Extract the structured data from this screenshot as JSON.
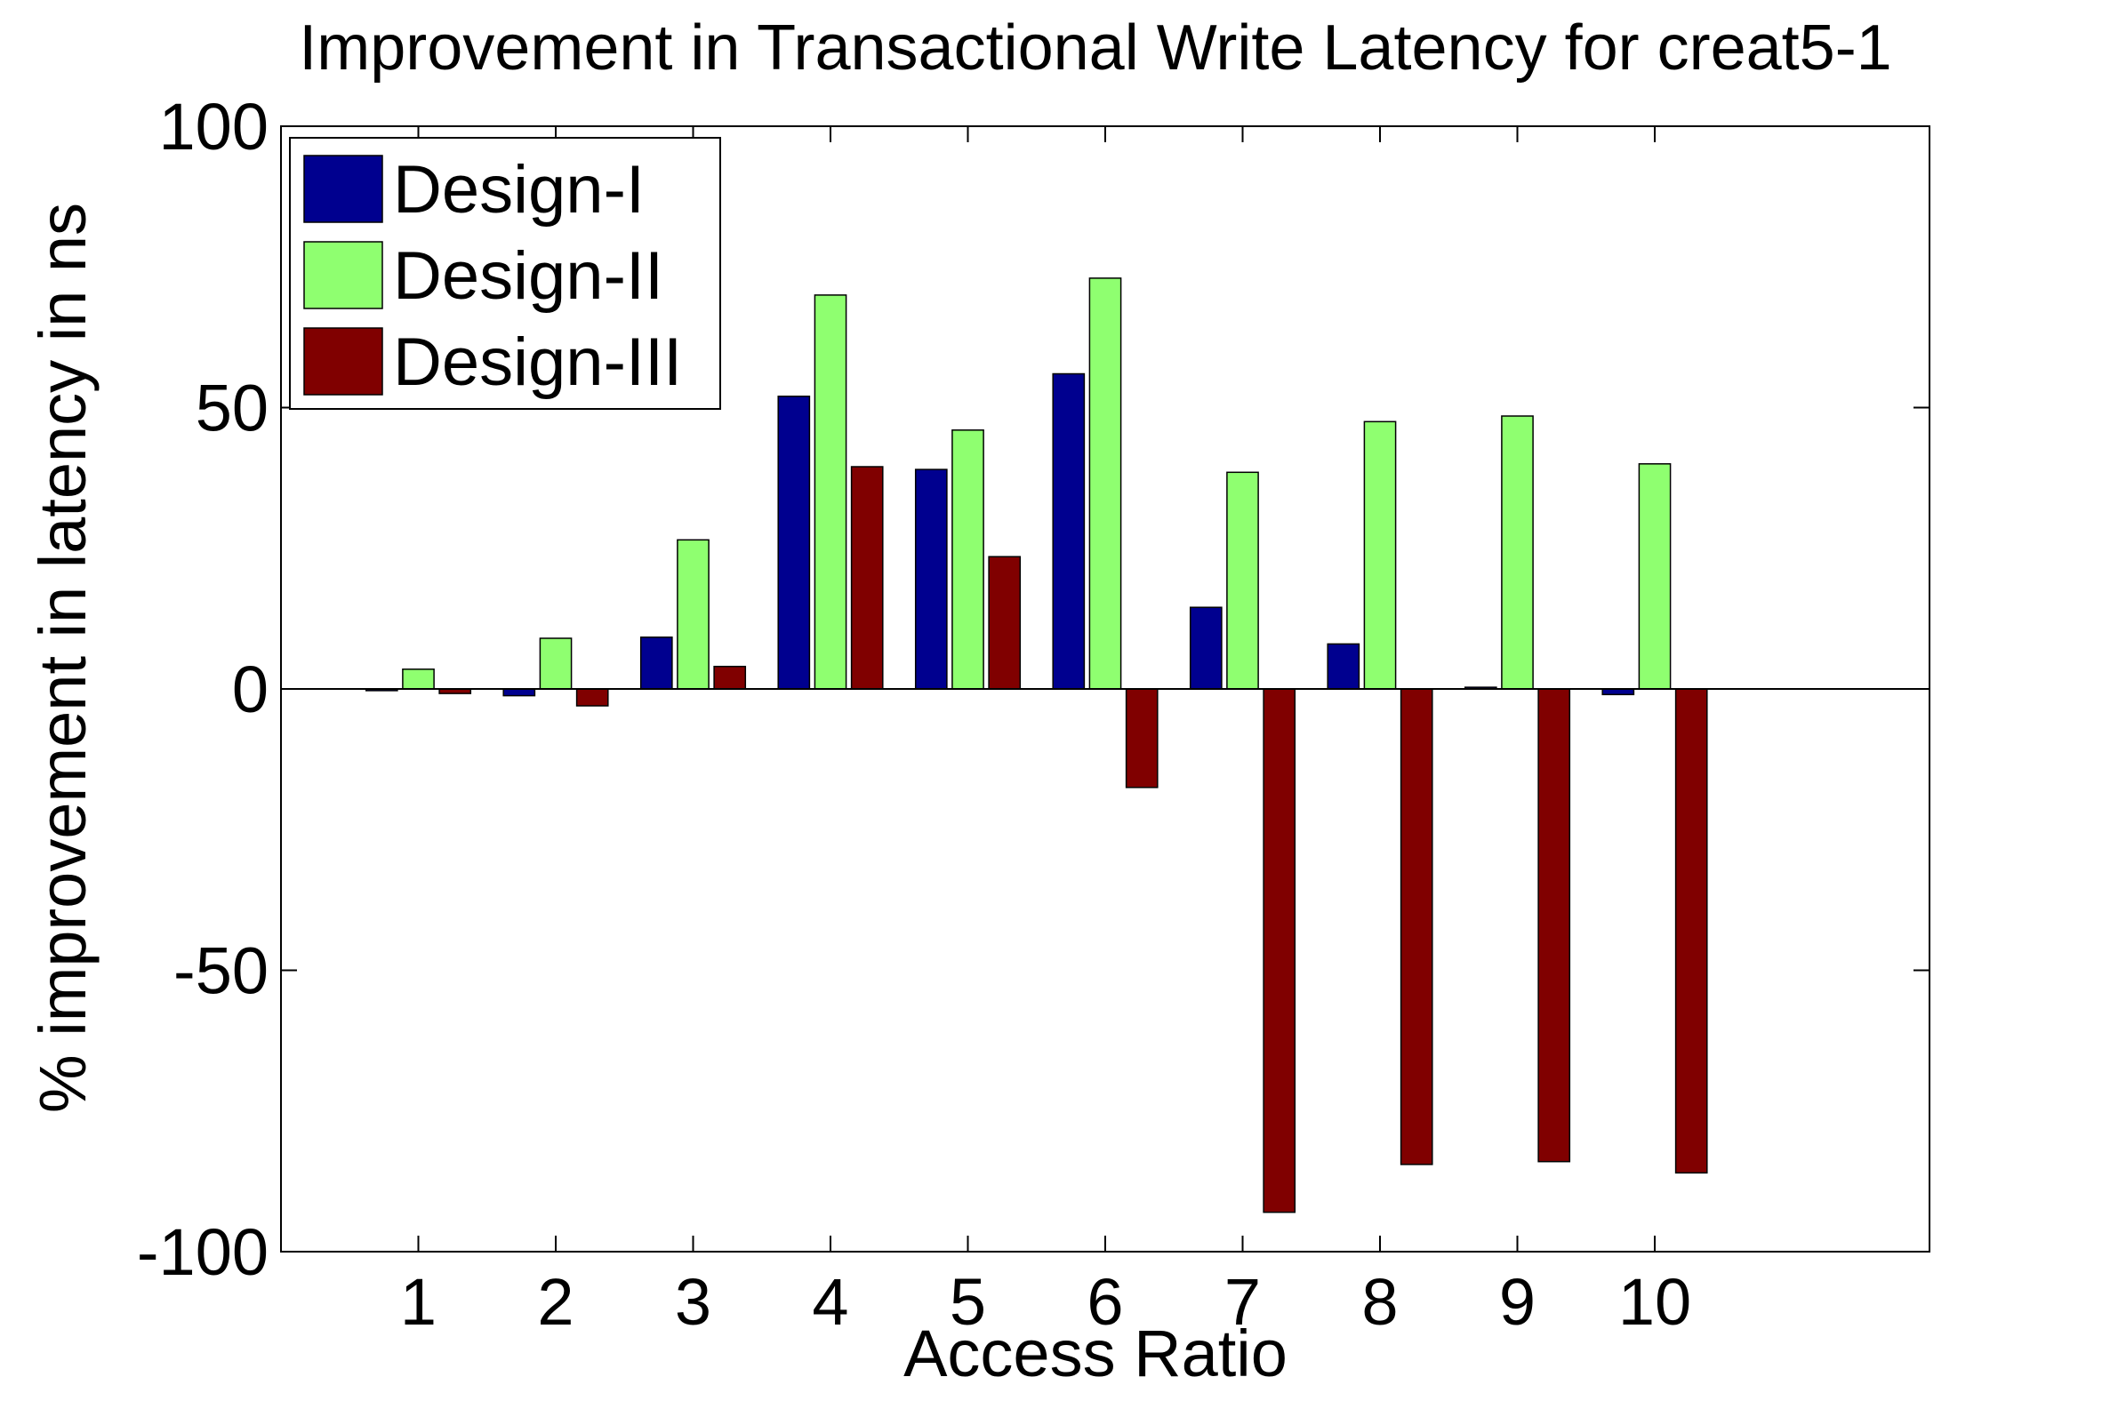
{
  "chart_data": {
    "type": "bar",
    "title": "Improvement in Transactional Write Latency for creat5-1",
    "xlabel": "Access Ratio",
    "ylabel": "% improvement in latency in ns",
    "categories": [
      "1",
      "2",
      "3",
      "4",
      "5",
      "6",
      "7",
      "8",
      "9",
      "10"
    ],
    "xlim": [
      0,
      12
    ],
    "ylim": [
      -100,
      100
    ],
    "yticks": [
      -100,
      -50,
      0,
      50,
      100
    ],
    "grid": false,
    "legend_position": "top-left",
    "series": [
      {
        "name": "Design-I",
        "color": "#00008F",
        "values": [
          -0.3,
          -1.2,
          9.2,
          52,
          39,
          56,
          14.5,
          8,
          0.3,
          -1
        ]
      },
      {
        "name": "Design-II",
        "color": "#8FFF70",
        "values": [
          3.5,
          9,
          26.5,
          70,
          46,
          73,
          38.5,
          47.5,
          48.5,
          40
        ]
      },
      {
        "name": "Design-III",
        "color": "#800000",
        "values": [
          -0.8,
          -3,
          4,
          39.5,
          23.5,
          -17.5,
          -93,
          -84.5,
          -84,
          -86
        ]
      }
    ]
  }
}
